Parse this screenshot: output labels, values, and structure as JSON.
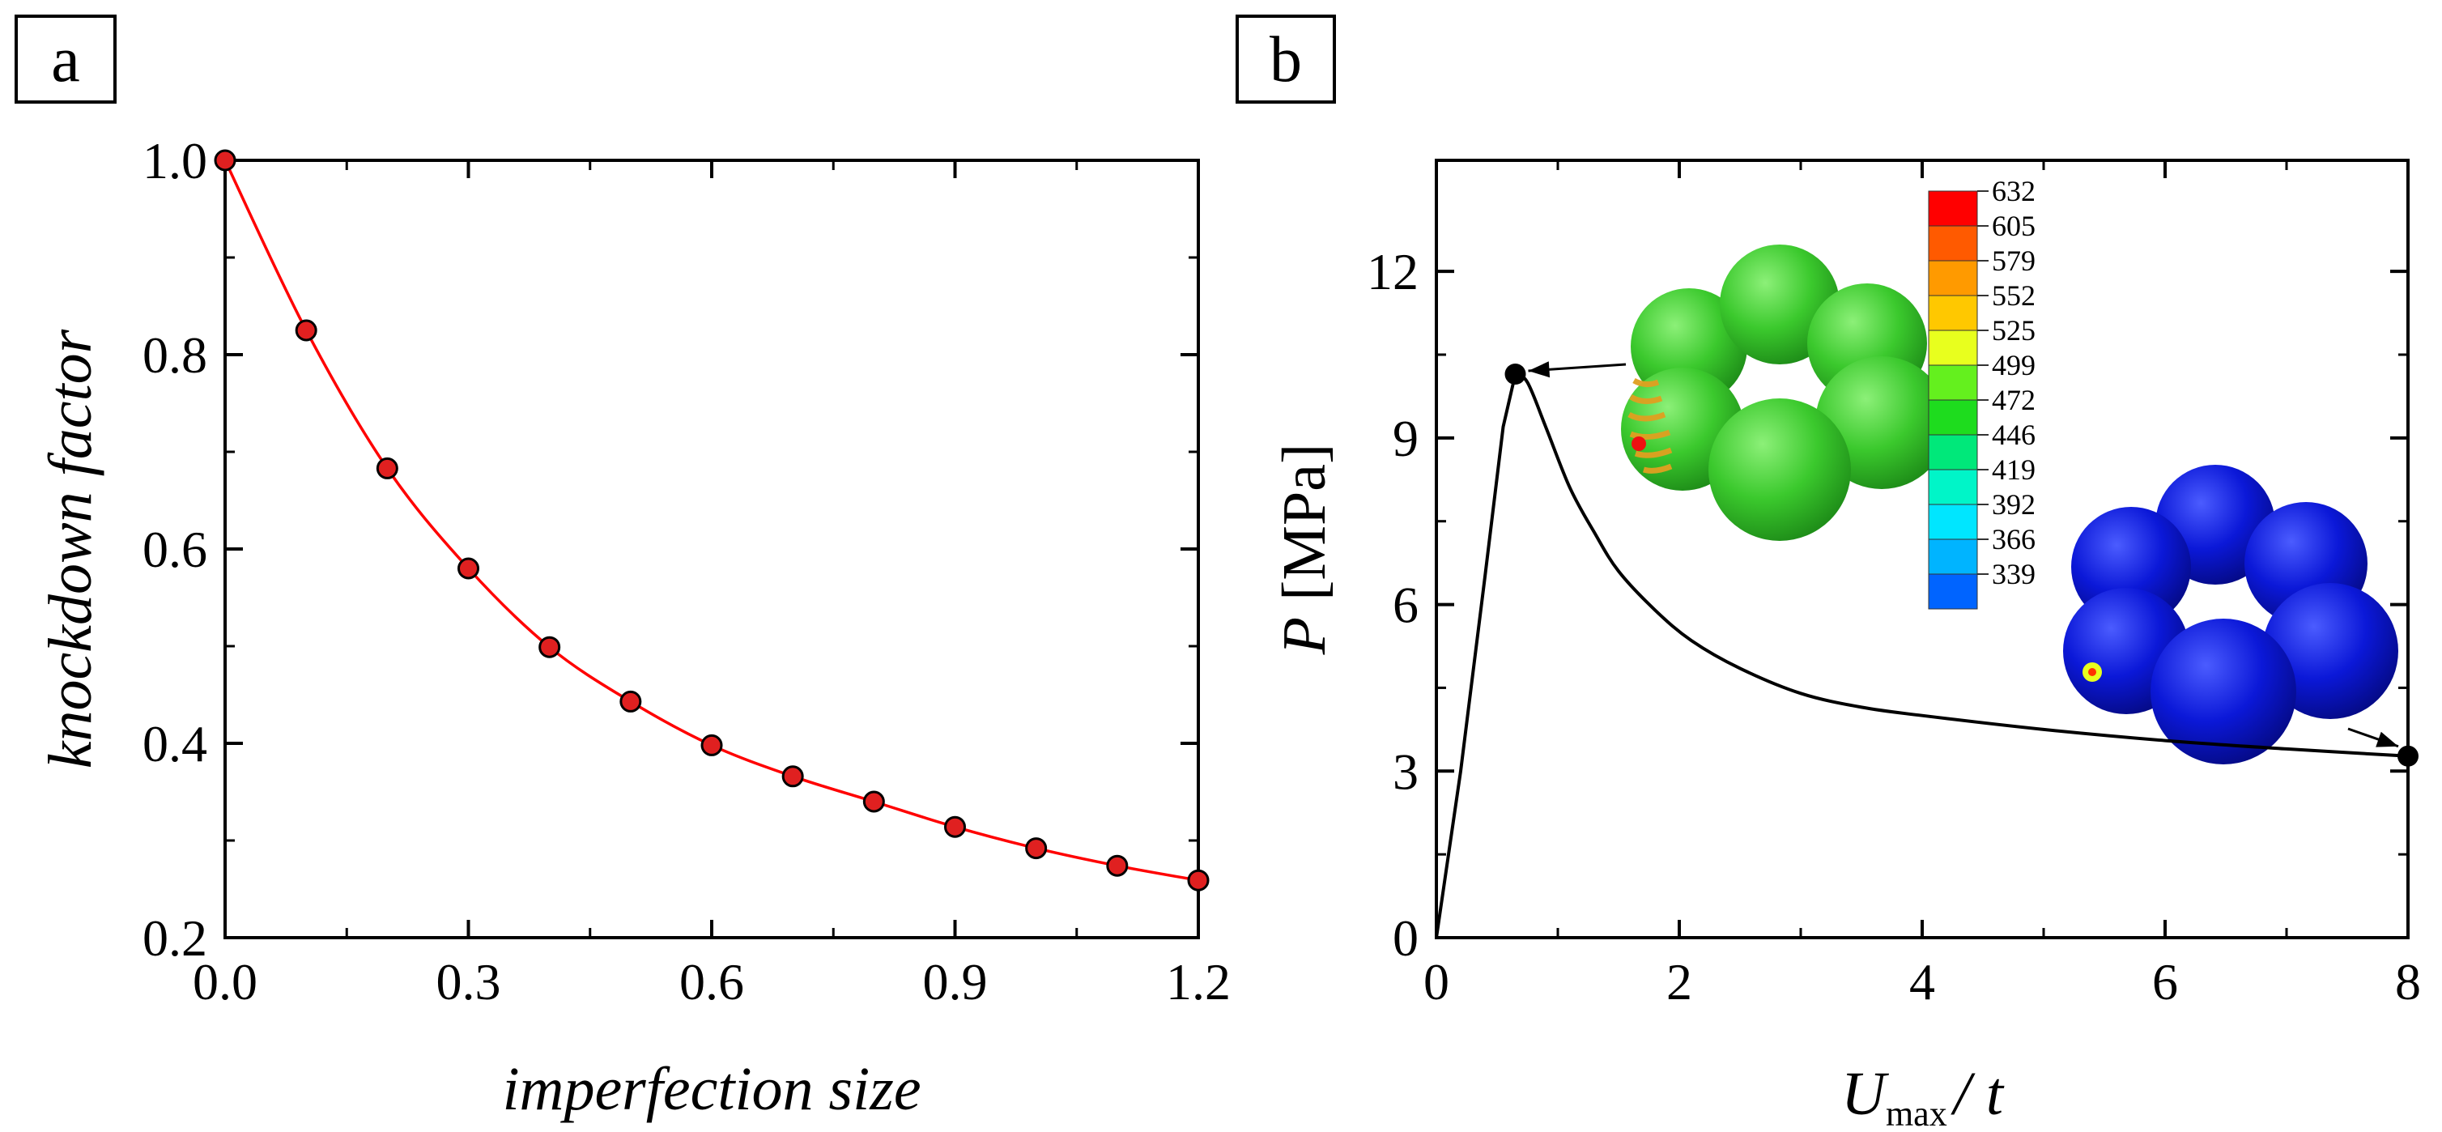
{
  "chart_data": [
    {
      "panel": "a",
      "type": "line",
      "xlabel": "imperfection size",
      "ylabel": "knockdown factor",
      "xlim": [
        0,
        1.2
      ],
      "ylim": [
        0.2,
        1.0
      ],
      "xticks": [
        0.0,
        0.3,
        0.6,
        0.9,
        1.2
      ],
      "xtick_labels": [
        "0.0",
        "0.3",
        "0.6",
        "0.9",
        "1.2"
      ],
      "yticks": [
        0.2,
        0.4,
        0.6,
        0.8,
        1.0
      ],
      "ytick_labels": [
        "0.2",
        "0.4",
        "0.6",
        "0.8",
        "1.0"
      ],
      "series": [
        {
          "name": "knockdown factor",
          "x": [
            0.0,
            0.1,
            0.2,
            0.3,
            0.4,
            0.5,
            0.6,
            0.7,
            0.8,
            0.9,
            1.0,
            1.1,
            1.2
          ],
          "y": [
            1.0,
            0.825,
            0.683,
            0.58,
            0.499,
            0.443,
            0.398,
            0.366,
            0.34,
            0.314,
            0.292,
            0.274,
            0.259
          ],
          "color": "#ff0000",
          "marker_color": "#e02020"
        }
      ]
    },
    {
      "panel": "b",
      "type": "line",
      "xlabel_main": "U",
      "xlabel_sub": "max",
      "xlabel_tail": "/ t",
      "ylabel_var": "P",
      "ylabel_unit": "[MPa]",
      "xlim": [
        0,
        8
      ],
      "ylim": [
        0,
        14
      ],
      "xticks": [
        0,
        2,
        4,
        6,
        8
      ],
      "xtick_labels": [
        "0",
        "2",
        "4",
        "6",
        "8"
      ],
      "yticks": [
        0,
        3,
        6,
        9,
        12
      ],
      "ytick_labels": [
        "0",
        "3",
        "6",
        "9",
        "12"
      ],
      "series": [
        {
          "name": "P",
          "x": [
            0,
            0.2,
            0.4,
            0.55,
            0.65,
            0.75,
            0.9,
            1.1,
            1.3,
            1.5,
            1.8,
            2.1,
            2.5,
            3.0,
            3.5,
            4.0,
            5.0,
            6.0,
            7.0,
            8.0
          ],
          "y": [
            0,
            3.0,
            6.5,
            9.2,
            10.15,
            10.0,
            9.2,
            8.1,
            7.3,
            6.6,
            5.9,
            5.35,
            4.85,
            4.4,
            4.15,
            4.0,
            3.75,
            3.55,
            3.4,
            3.27
          ],
          "color": "#000000"
        }
      ],
      "highlight_points": [
        {
          "x": 0.65,
          "y": 10.15
        },
        {
          "x": 8.0,
          "y": 3.27
        }
      ],
      "colorbar": {
        "labels": [
          "632",
          "605",
          "579",
          "552",
          "525",
          "499",
          "472",
          "446",
          "419",
          "392",
          "366",
          "339"
        ],
        "colors": [
          "#ff0000",
          "#ff5a00",
          "#ff9a00",
          "#ffc800",
          "#e8ff1e",
          "#64f01e",
          "#1edc1e",
          "#00e87a",
          "#00f5c8",
          "#00e6ff",
          "#00b4ff",
          "#0064ff"
        ]
      },
      "insets": [
        {
          "name": "peak-load-deformed-shells",
          "color": "#37cd2d"
        },
        {
          "name": "final-deformed-shells",
          "color": "#0a14dc"
        }
      ]
    }
  ],
  "panel_tags": {
    "a": "a",
    "b": "b"
  }
}
